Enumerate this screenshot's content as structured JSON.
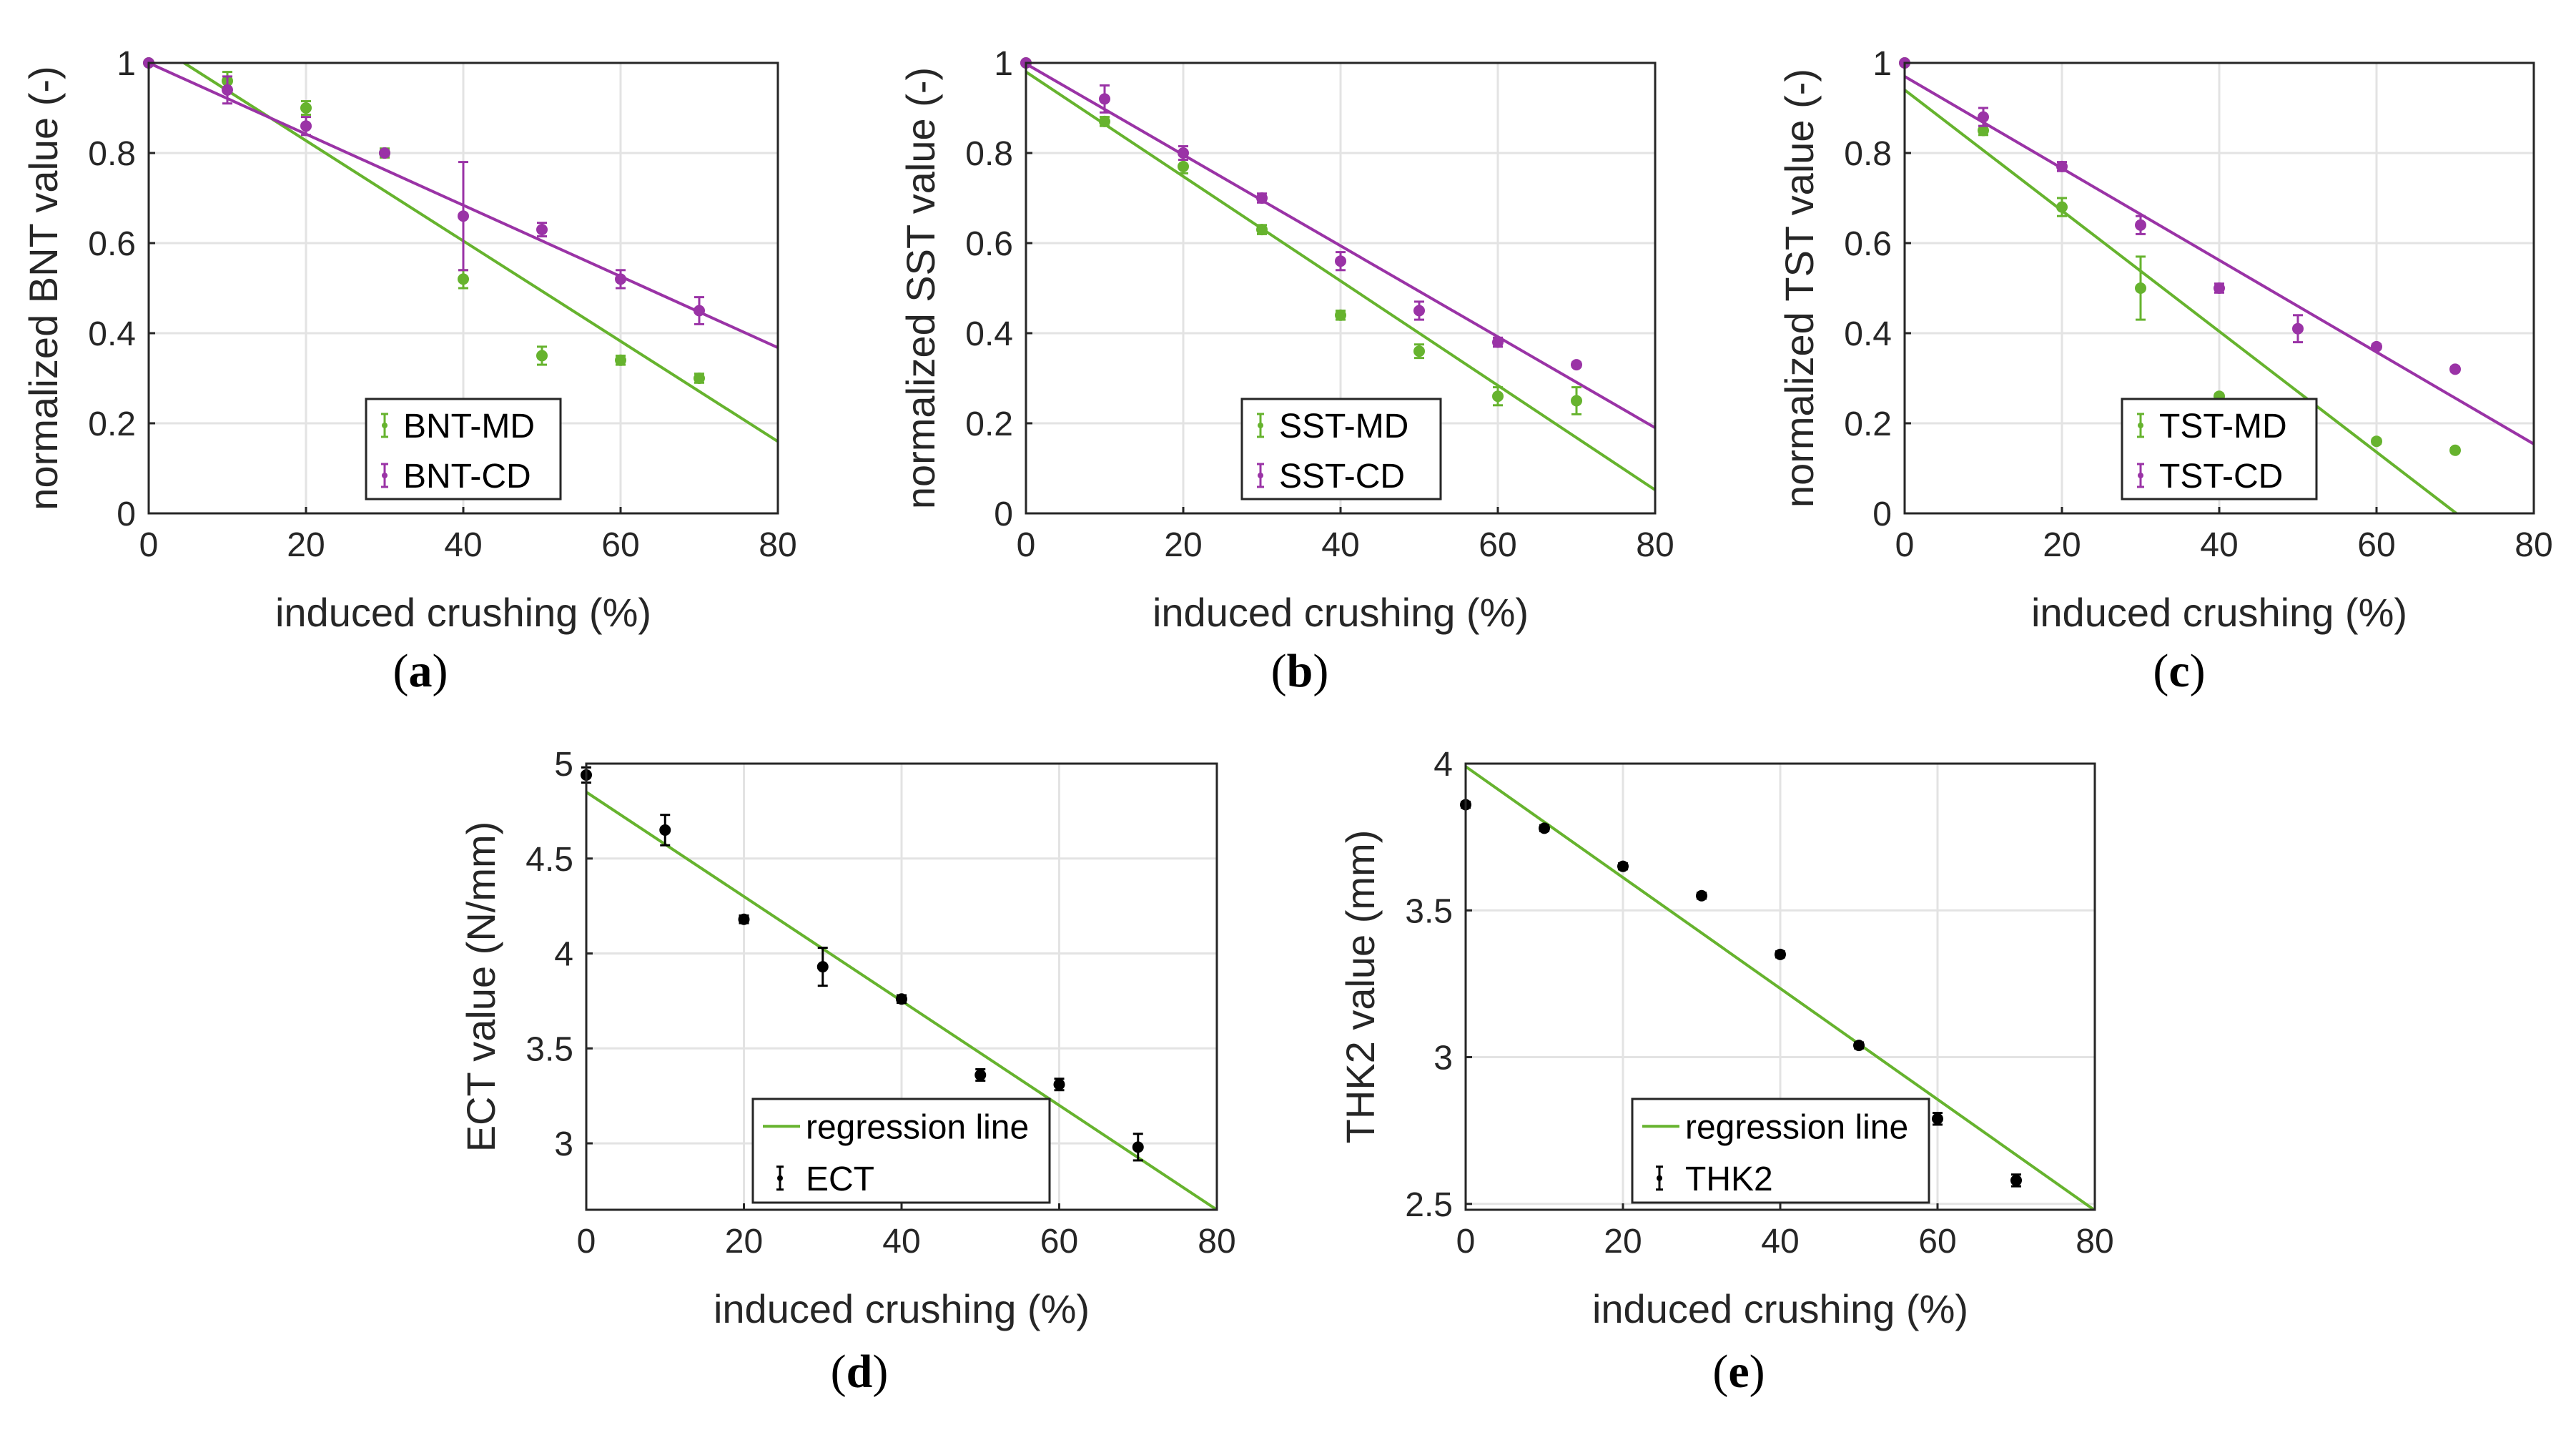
{
  "chart_data": [
    {
      "id": "a",
      "type": "scatter",
      "panel_label": "a",
      "xlabel": "induced crushing (%)",
      "ylabel": "normalized BNT value (-)",
      "xlim": [
        0,
        80
      ],
      "ylim": [
        0,
        1
      ],
      "xticks": [
        0,
        20,
        40,
        60,
        80
      ],
      "yticks": [
        0,
        0.2,
        0.4,
        0.6,
        0.8,
        1
      ],
      "ytick_labels": [
        "0",
        "0.2",
        "0.4",
        "0.6",
        "0.8",
        "1"
      ],
      "grid": true,
      "legend_position": "bottom-center",
      "series": [
        {
          "name": "BNT-MD",
          "color": "#66b32e",
          "x": [
            0,
            10,
            20,
            30,
            40,
            50,
            60,
            70
          ],
          "y": [
            1.0,
            0.96,
            0.9,
            0.8,
            0.52,
            0.35,
            0.34,
            0.3
          ],
          "err": [
            0.0,
            0.02,
            0.015,
            0.01,
            0.02,
            0.02,
            0.01,
            0.01
          ],
          "fit": {
            "slope": -0.01113,
            "intercept": 1.05
          }
        },
        {
          "name": "BNT-CD",
          "color": "#9a33a6",
          "x": [
            0,
            10,
            20,
            30,
            40,
            50,
            60,
            70
          ],
          "y": [
            1.0,
            0.94,
            0.86,
            0.8,
            0.66,
            0.63,
            0.52,
            0.45
          ],
          "err": [
            0.0,
            0.03,
            0.02,
            0.005,
            0.12,
            0.015,
            0.02,
            0.03
          ],
          "fit": {
            "slope": -0.0079,
            "intercept": 1.0
          }
        }
      ]
    },
    {
      "id": "b",
      "type": "scatter",
      "panel_label": "b",
      "xlabel": "induced crushing (%)",
      "ylabel": "normalized SST value (-)",
      "xlim": [
        0,
        80
      ],
      "ylim": [
        0,
        1
      ],
      "xticks": [
        0,
        20,
        40,
        60,
        80
      ],
      "yticks": [
        0,
        0.2,
        0.4,
        0.6,
        0.8,
        1
      ],
      "ytick_labels": [
        "0",
        "0.2",
        "0.4",
        "0.6",
        "0.8",
        "1"
      ],
      "grid": true,
      "legend_position": "bottom-center",
      "series": [
        {
          "name": "SST-MD",
          "color": "#66b32e",
          "x": [
            0,
            10,
            20,
            30,
            40,
            50,
            60,
            70
          ],
          "y": [
            1.0,
            0.87,
            0.77,
            0.63,
            0.44,
            0.36,
            0.26,
            0.25
          ],
          "err": [
            0.0,
            0.01,
            0.015,
            0.01,
            0.01,
            0.015,
            0.02,
            0.03
          ],
          "fit": {
            "slope": -0.0116,
            "intercept": 0.98
          }
        },
        {
          "name": "SST-CD",
          "color": "#9a33a6",
          "x": [
            0,
            10,
            20,
            30,
            40,
            50,
            60,
            70
          ],
          "y": [
            1.0,
            0.92,
            0.8,
            0.7,
            0.56,
            0.45,
            0.38,
            0.33
          ],
          "err": [
            0.0,
            0.03,
            0.015,
            0.01,
            0.02,
            0.02,
            0.01,
            0.005
          ],
          "fit": {
            "slope": -0.0101,
            "intercept": 0.998
          }
        }
      ]
    },
    {
      "id": "c",
      "type": "scatter",
      "panel_label": "c",
      "xlabel": "induced crushing (%)",
      "ylabel": "normalized TST value (-)",
      "xlim": [
        0,
        80
      ],
      "ylim": [
        0,
        1
      ],
      "xticks": [
        0,
        20,
        40,
        60,
        80
      ],
      "yticks": [
        0,
        0.2,
        0.4,
        0.6,
        0.8,
        1
      ],
      "ytick_labels": [
        "0",
        "0.2",
        "0.4",
        "0.6",
        "0.8",
        "1"
      ],
      "grid": true,
      "legend_position": "bottom-center",
      "series": [
        {
          "name": "TST-MD",
          "color": "#66b32e",
          "x": [
            0,
            10,
            20,
            30,
            40,
            60,
            70
          ],
          "y": [
            1.0,
            0.85,
            0.68,
            0.5,
            0.26,
            0.16,
            0.14
          ],
          "err": [
            0.0,
            0.01,
            0.02,
            0.07,
            0.005,
            0.005,
            0.005
          ],
          "fit": {
            "slope": -0.0134,
            "intercept": 0.94
          }
        },
        {
          "name": "TST-CD",
          "color": "#9a33a6",
          "x": [
            0,
            10,
            20,
            30,
            40,
            50,
            60,
            70
          ],
          "y": [
            1.0,
            0.88,
            0.77,
            0.64,
            0.5,
            0.41,
            0.37,
            0.32
          ],
          "err": [
            0.0,
            0.02,
            0.01,
            0.02,
            0.01,
            0.03,
            0.005,
            0.005
          ],
          "fit": {
            "slope": -0.0102,
            "intercept": 0.97
          }
        }
      ]
    },
    {
      "id": "d",
      "type": "scatter",
      "panel_label": "d",
      "xlabel": "induced crushing (%)",
      "ylabel": "ECT value (N/mm)",
      "xlim": [
        0,
        80
      ],
      "ylim": [
        2.65,
        5
      ],
      "xticks": [
        0,
        20,
        40,
        60,
        80
      ],
      "yticks": [
        3,
        3.5,
        4,
        4.5,
        5
      ],
      "ytick_labels": [
        "3",
        "3.5",
        "4",
        "4.5",
        "5"
      ],
      "grid": true,
      "legend_position": "bottom-right",
      "regression_label": "regression line",
      "regression_color": "#66b32e",
      "fit": {
        "slope": -0.0275,
        "intercept": 4.85
      },
      "series": [
        {
          "name": "ECT",
          "color": "#000000",
          "x": [
            0,
            10,
            20,
            30,
            40,
            50,
            60,
            70
          ],
          "y": [
            4.94,
            4.65,
            4.18,
            3.93,
            3.76,
            3.36,
            3.31,
            2.98
          ],
          "err": [
            0.04,
            0.08,
            0.02,
            0.1,
            0.02,
            0.03,
            0.03,
            0.07
          ]
        }
      ]
    },
    {
      "id": "e",
      "type": "scatter",
      "panel_label": "e",
      "xlabel": "induced crushing (%)",
      "ylabel": "THK2 value (mm)",
      "xlim": [
        0,
        80
      ],
      "ylim": [
        2.48,
        4
      ],
      "xticks": [
        0,
        20,
        40,
        60,
        80
      ],
      "yticks": [
        2.5,
        3,
        3.5,
        4
      ],
      "ytick_labels": [
        "2.5",
        "3",
        "3.5",
        "4"
      ],
      "grid": true,
      "legend_position": "bottom-right",
      "regression_label": "regression line",
      "regression_color": "#66b32e",
      "fit": {
        "slope": -0.0189,
        "intercept": 3.99
      },
      "series": [
        {
          "name": "THK2",
          "color": "#000000",
          "x": [
            0,
            10,
            20,
            30,
            40,
            50,
            60,
            70
          ],
          "y": [
            3.86,
            3.78,
            3.65,
            3.55,
            3.35,
            3.04,
            2.79,
            2.58
          ],
          "err": [
            0.01,
            0.01,
            0.01,
            0.01,
            0.01,
            0.01,
            0.02,
            0.02
          ]
        }
      ]
    }
  ]
}
